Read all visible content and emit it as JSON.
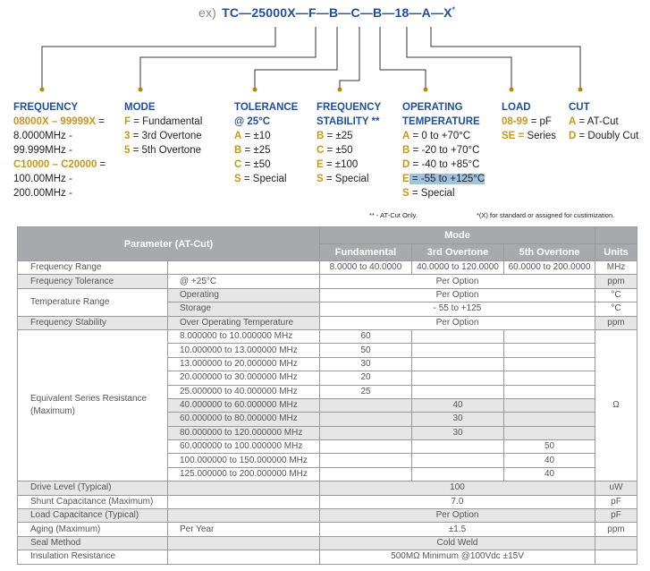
{
  "part_code": {
    "prefix": "ex)",
    "code": "TC—25000X—F—B—C—B—18—A—X",
    "suffix": "*"
  },
  "legend": [
    {
      "title": [
        "FREQUENCY"
      ],
      "lines": [
        [
          {
            "k": "08000X – 99999X",
            "v": " ="
          }
        ],
        [
          {
            "v": "8.0000MHz -"
          }
        ],
        [
          {
            "v": "99.999MHz -"
          }
        ],
        [
          {
            "k": "C10000 – C20000",
            "v": " ="
          }
        ],
        [
          {
            "v": "100.00MHz -"
          }
        ],
        [
          {
            "v": "200.00MHz -"
          }
        ]
      ]
    },
    {
      "title": [
        "MODE"
      ],
      "lines": [
        [
          {
            "k": "F",
            "v": " = Fundamental"
          }
        ],
        [
          {
            "k": "3",
            "v": " = 3rd Overtone"
          }
        ],
        [
          {
            "k": "5",
            "v": " = 5th Overtone"
          }
        ]
      ]
    },
    {
      "title": [
        "TOLERANCE",
        "@ 25°C"
      ],
      "lines": [
        [
          {
            "k": "A",
            "v": " = ±10"
          }
        ],
        [
          {
            "k": "B",
            "v": " = ±25"
          }
        ],
        [
          {
            "k": "C",
            "v": " = ±50"
          }
        ],
        [
          {
            "k": "S",
            "v": " = Special"
          }
        ]
      ]
    },
    {
      "title": [
        "FREQUENCY",
        "STABILITY **"
      ],
      "lines": [
        [
          {
            "k": "B",
            "v": " = ±25"
          }
        ],
        [
          {
            "k": "C",
            "v": " = ±50"
          }
        ],
        [
          {
            "k": "E",
            "v": " = ±100"
          }
        ],
        [
          {
            "k": "S",
            "v": " = Special"
          }
        ]
      ]
    },
    {
      "title": [
        "OPERATING",
        "TEMPERATURE"
      ],
      "lines": [
        [
          {
            "k": "A",
            "v": " = 0 to +70°C"
          }
        ],
        [
          {
            "k": "B",
            "v": " = -20 to +70°C"
          }
        ],
        [
          {
            "k": "D",
            "v": " = -40 to +85°C"
          }
        ],
        [
          {
            "k": "E",
            "v": " = -55 to +125°C",
            "highlight": true
          }
        ],
        [
          {
            "k": "S",
            "v": " = Special"
          }
        ]
      ]
    },
    {
      "title": [
        "LOAD"
      ],
      "lines": [
        [
          {
            "k": "08-99",
            "v": " = pF"
          }
        ],
        [
          {
            "k": "SE =",
            "v": " Series"
          }
        ]
      ]
    },
    {
      "title": [
        "CUT"
      ],
      "lines": [
        [
          {
            "k": "A",
            "v": " = AT-Cut"
          }
        ],
        [
          {
            "k": "D",
            "v": " = Doubly Cut"
          }
        ]
      ]
    }
  ],
  "notes": {
    "at_cut": "** - AT-Cut Only.",
    "x_note": "*(X) for standard or assigned for custimization."
  },
  "table": {
    "header": {
      "parameter": "Parameter (AT-Cut)",
      "mode": "Mode",
      "fundamental": "Fundamental",
      "third": "3rd Overtone",
      "fifth": "5th Overtone",
      "units": "Units"
    },
    "freq_range": {
      "label": "Frequency Range",
      "fund": "8.0000 to 40.0000",
      "third": "40.0000 to 120.0000",
      "fifth": "60.0000 to 200.0000",
      "unit": "MHz"
    },
    "freq_tol": {
      "label": "Frequency Tolerance",
      "cond": "@ +25°C",
      "value": "Per Option",
      "unit": "ppm"
    },
    "temp_range": {
      "label": "Temperature Range",
      "op_cond": "Operating",
      "op_value": "Per Option",
      "op_unit": "°C",
      "st_cond": "Storage",
      "st_value": "- 55 to +125",
      "st_unit": "°C"
    },
    "freq_stab": {
      "label": "Frequency Stability",
      "cond": "Over Operating Temperature",
      "value": "Per Option",
      "unit": "ppm"
    },
    "esr": {
      "label": "Equivalent Series Resistance (Maximum)",
      "unit": "Ω",
      "rows": [
        {
          "range": "8.000000 to 10.000000 MHz",
          "fund": "60",
          "third": "",
          "fifth": ""
        },
        {
          "range": "10.000000 to 13.000000 MHz",
          "fund": "50",
          "third": "",
          "fifth": ""
        },
        {
          "range": "13.000000 to 20.000000 MHz",
          "fund": "30",
          "third": "",
          "fifth": ""
        },
        {
          "range": "20.000000 to 30.000000 MHz",
          "fund": "20",
          "third": "",
          "fifth": ""
        },
        {
          "range": "25.000000 to 40.000000 MHz",
          "fund": "25",
          "third": "",
          "fifth": ""
        },
        {
          "range": "40.000000 to 60.000000 MHz",
          "fund": "",
          "third": "40",
          "fifth": ""
        },
        {
          "range": "60.000000 to 80.000000 MHz",
          "fund": "",
          "third": "30",
          "fifth": ""
        },
        {
          "range": "80.000000 to 120.000000 MHz",
          "fund": "",
          "third": "30",
          "fifth": ""
        },
        {
          "range": "60.000000 to 100.000000 MHz",
          "fund": "",
          "third": "",
          "fifth": "50"
        },
        {
          "range": "100.000000 to 150.000000 MHz",
          "fund": "",
          "third": "",
          "fifth": "40"
        },
        {
          "range": "125.000000 to 200.000000 MHz",
          "fund": "",
          "third": "",
          "fifth": "40"
        }
      ]
    },
    "rest": [
      {
        "label": "Drive Level (Typical)",
        "cond": "",
        "value": "100",
        "unit": "uW"
      },
      {
        "label": "Shunt Capacitance (Maximum)",
        "cond": "",
        "value": "7.0",
        "unit": "pF"
      },
      {
        "label": "Load Capacitance (Typical)",
        "cond": "",
        "value": "Per Option",
        "unit": "pF"
      },
      {
        "label": "Aging (Maximum)",
        "cond": "Per Year",
        "value": "±1.5",
        "unit": "ppm"
      },
      {
        "label": "Seal Method",
        "cond": "",
        "value": "Cold Weld",
        "unit": ""
      },
      {
        "label": "Insulation Resistance",
        "cond": "",
        "value": "500MΩ Minimum @100Vdc ±15V",
        "unit": ""
      }
    ]
  },
  "colors": {
    "heading": "#1f4e9c",
    "key": "#c8961b",
    "header_bg": "#a7a9ac",
    "highlight": "#9fc3dd"
  }
}
